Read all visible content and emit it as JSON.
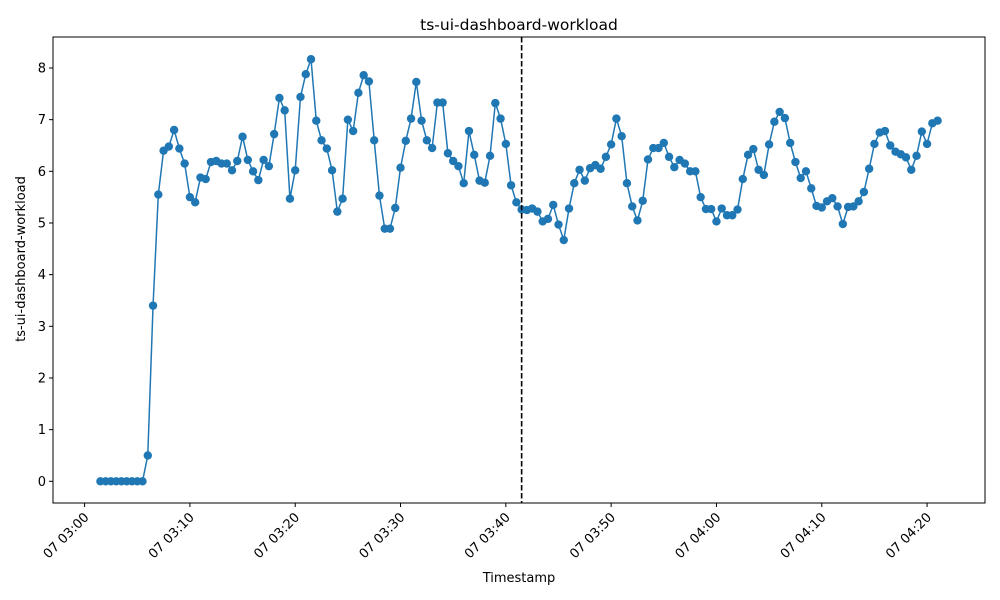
{
  "chart_data": {
    "type": "line",
    "title": "ts-ui-dashboard-workload",
    "xlabel": "Timestamp",
    "ylabel": "ts-ui-dashboard-workload",
    "x_start": "2000-01-07 03:01:30",
    "x_step_seconds": 30,
    "xlim": [
      "2000-01-07 02:57:00",
      "2000-01-07 04:25:30"
    ],
    "ylim": [
      -0.42,
      8.6
    ],
    "x_ticks": [
      {
        "label": "07 03:00",
        "time": "2000-01-07 03:00:00"
      },
      {
        "label": "07 03:10",
        "time": "2000-01-07 03:10:00"
      },
      {
        "label": "07 03:20",
        "time": "2000-01-07 03:20:00"
      },
      {
        "label": "07 03:30",
        "time": "2000-01-07 03:30:00"
      },
      {
        "label": "07 03:40",
        "time": "2000-01-07 03:40:00"
      },
      {
        "label": "07 03:50",
        "time": "2000-01-07 03:50:00"
      },
      {
        "label": "07 04:00",
        "time": "2000-01-07 04:00:00"
      },
      {
        "label": "07 04:10",
        "time": "2000-01-07 04:10:00"
      },
      {
        "label": "07 04:20",
        "time": "2000-01-07 04:20:00"
      }
    ],
    "y_ticks": [
      0,
      1,
      2,
      3,
      4,
      5,
      6,
      7,
      8
    ],
    "vline": "2000-01-07 03:41:30",
    "grid": false,
    "series": [
      {
        "color": "#1f77b4",
        "values": [
          0,
          0,
          0,
          0,
          0,
          0,
          0,
          0,
          0,
          0.5,
          3.4,
          5.55,
          6.4,
          6.48,
          6.8,
          6.44,
          6.15,
          5.5,
          5.4,
          5.88,
          5.85,
          6.18,
          6.2,
          6.15,
          6.15,
          6.02,
          6.2,
          6.67,
          6.22,
          6,
          5.83,
          6.22,
          6.1,
          6.72,
          7.42,
          7.18,
          5.47,
          6.02,
          7.44,
          7.88,
          8.17,
          6.98,
          6.6,
          6.44,
          6.02,
          5.22,
          5.47,
          7,
          6.78,
          7.52,
          7.86,
          7.74,
          6.6,
          5.53,
          4.89,
          4.89,
          5.29,
          6.07,
          6.59,
          7.02,
          7.73,
          6.98,
          6.6,
          6.45,
          7.33,
          7.33,
          6.35,
          6.2,
          6.1,
          5.77,
          6.78,
          6.32,
          5.82,
          5.78,
          6.3,
          7.32,
          7.02,
          6.53,
          5.73,
          5.4,
          5.26,
          5.25,
          5.28,
          5.22,
          5.03,
          5.08,
          5.35,
          4.97,
          4.67,
          5.28,
          5.77,
          6.03,
          5.82,
          6.06,
          6.12,
          6.05,
          6.28,
          6.52,
          7.02,
          6.68,
          5.77,
          5.32,
          5.05,
          5.43,
          6.23,
          6.45,
          6.45,
          6.55,
          6.28,
          6.08,
          6.22,
          6.15,
          6,
          6,
          5.5,
          5.27,
          5.27,
          5.03,
          5.28,
          5.15,
          5.15,
          5.26,
          5.85,
          6.32,
          6.43,
          6.03,
          5.93,
          6.52,
          6.96,
          7.15,
          7.03,
          6.55,
          6.18,
          5.87,
          6,
          5.67,
          5.33,
          5.3,
          5.42,
          5.48,
          5.32,
          4.98,
          5.31,
          5.32,
          5.42,
          5.6,
          6.05,
          6.53,
          6.75,
          6.78,
          6.5,
          6.38,
          6.33,
          6.27,
          6.03,
          6.3,
          6.77,
          6.53,
          6.93,
          6.98
        ]
      }
    ]
  }
}
